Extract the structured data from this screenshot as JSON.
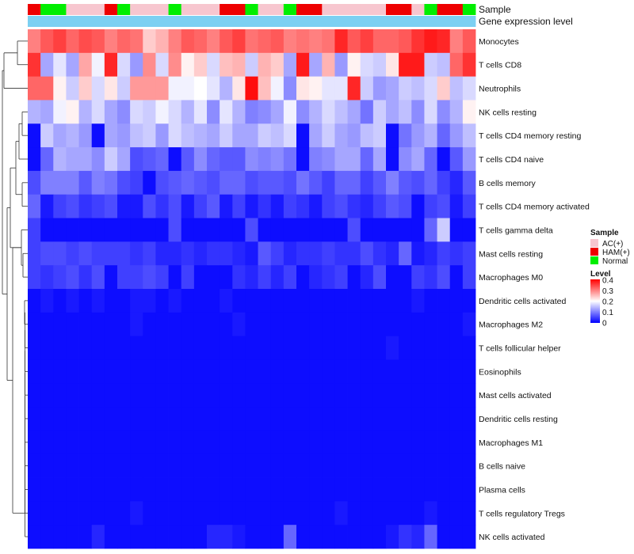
{
  "chart_data": {
    "type": "heatmap",
    "annotation_labels": {
      "sample": "Sample",
      "gene_expression": "Gene expression level"
    },
    "rows": [
      "Monocytes",
      "T cells CD8",
      "Neutrophils",
      "NK cells resting",
      "T cells CD4 memory resting",
      "T cells CD4 naive",
      "B cells memory",
      "T cells CD4 memory activated",
      "T cells gamma delta",
      "Mast cells resting",
      "Macrophages M0",
      "Dendritic cells activated",
      "Macrophages M2",
      "T cells follicular helper",
      "Eosinophils",
      "Mast cells activated",
      "Dendritic cells resting",
      "Macrophages M1",
      "B cells naive",
      "Plasma cells",
      "T cells regulatory  Tregs",
      "NK cells activated"
    ],
    "samples": [
      "HAM(+)",
      "Normal",
      "Normal",
      "AC(+)",
      "AC(+)",
      "AC(+)",
      "HAM(+)",
      "Normal",
      "AC(+)",
      "AC(+)",
      "AC(+)",
      "Normal",
      "AC(+)",
      "AC(+)",
      "AC(+)",
      "HAM(+)",
      "HAM(+)",
      "Normal",
      "AC(+)",
      "AC(+)",
      "Normal",
      "HAM(+)",
      "HAM(+)",
      "AC(+)",
      "AC(+)",
      "AC(+)",
      "AC(+)",
      "AC(+)",
      "HAM(+)",
      "HAM(+)",
      "AC(+)",
      "Normal",
      "HAM(+)",
      "HAM(+)",
      "Normal"
    ],
    "gene_expression_level": [
      0.1,
      0.1,
      0.1,
      0.1,
      0.1,
      0.1,
      0.1,
      0.1,
      0.1,
      0.1,
      0.1,
      0.1,
      0.1,
      0.1,
      0.1,
      0.1,
      0.1,
      0.1,
      0.1,
      0.1,
      0.1,
      0.1,
      0.1,
      0.1,
      0.1,
      0.1,
      0.1,
      0.1,
      0.1,
      0.1,
      0.1,
      0.1,
      0.1,
      0.1,
      0.1
    ],
    "values": [
      [
        0.3,
        0.33,
        0.35,
        0.32,
        0.34,
        0.33,
        0.3,
        0.32,
        0.31,
        0.24,
        0.26,
        0.3,
        0.33,
        0.32,
        0.3,
        0.33,
        0.35,
        0.31,
        0.32,
        0.33,
        0.3,
        0.31,
        0.3,
        0.31,
        0.37,
        0.33,
        0.35,
        0.32,
        0.32,
        0.33,
        0.36,
        0.38,
        0.37,
        0.3,
        0.33
      ],
      [
        0.36,
        0.13,
        0.18,
        0.13,
        0.27,
        0.19,
        0.37,
        0.17,
        0.12,
        0.29,
        0.17,
        0.29,
        0.21,
        0.24,
        0.17,
        0.25,
        0.26,
        0.16,
        0.26,
        0.24,
        0.13,
        0.38,
        0.13,
        0.26,
        0.12,
        0.21,
        0.17,
        0.16,
        0.22,
        0.38,
        0.38,
        0.16,
        0.15,
        0.32,
        0.36
      ],
      [
        0.32,
        0.32,
        0.21,
        0.16,
        0.24,
        0.17,
        0.22,
        0.16,
        0.28,
        0.28,
        0.28,
        0.19,
        0.19,
        0.2,
        0.18,
        0.14,
        0.22,
        0.39,
        0.25,
        0.19,
        0.11,
        0.22,
        0.21,
        0.18,
        0.18,
        0.37,
        0.16,
        0.12,
        0.13,
        0.16,
        0.15,
        0.17,
        0.24,
        0.15,
        0.17
      ],
      [
        0.14,
        0.13,
        0.19,
        0.21,
        0.14,
        0.17,
        0.13,
        0.11,
        0.17,
        0.16,
        0.19,
        0.17,
        0.14,
        0.18,
        0.11,
        0.18,
        0.14,
        0.1,
        0.11,
        0.13,
        0.19,
        0.11,
        0.14,
        0.17,
        0.15,
        0.13,
        0.09,
        0.16,
        0.13,
        0.15,
        0.11,
        0.17,
        0.11,
        0.14,
        0.21
      ],
      [
        0.01,
        0.16,
        0.13,
        0.14,
        0.12,
        0.01,
        0.13,
        0.12,
        0.15,
        0.16,
        0.12,
        0.17,
        0.15,
        0.14,
        0.13,
        0.16,
        0.13,
        0.13,
        0.16,
        0.15,
        0.17,
        0.01,
        0.13,
        0.16,
        0.13,
        0.12,
        0.15,
        0.16,
        0.01,
        0.09,
        0.12,
        0.14,
        0.08,
        0.12,
        0.15
      ],
      [
        0.01,
        0.08,
        0.14,
        0.13,
        0.13,
        0.11,
        0.16,
        0.13,
        0.06,
        0.07,
        0.08,
        0.01,
        0.07,
        0.11,
        0.08,
        0.07,
        0.07,
        0.11,
        0.1,
        0.11,
        0.09,
        0.01,
        0.1,
        0.11,
        0.13,
        0.13,
        0.08,
        0.13,
        0.01,
        0.11,
        0.13,
        0.08,
        0.01,
        0.07,
        0.12
      ],
      [
        0.06,
        0.1,
        0.1,
        0.1,
        0.07,
        0.1,
        0.09,
        0.06,
        0.05,
        0.01,
        0.06,
        0.07,
        0.08,
        0.07,
        0.06,
        0.08,
        0.08,
        0.06,
        0.07,
        0.07,
        0.06,
        0.09,
        0.07,
        0.05,
        0.08,
        0.08,
        0.05,
        0.07,
        0.1,
        0.07,
        0.06,
        0.08,
        0.05,
        0.03,
        0.07
      ],
      [
        0.08,
        0.02,
        0.05,
        0.06,
        0.04,
        0.05,
        0.06,
        0.02,
        0.02,
        0.06,
        0.04,
        0.06,
        0.02,
        0.05,
        0.07,
        0.02,
        0.05,
        0.02,
        0.04,
        0.02,
        0.05,
        0.04,
        0.02,
        0.05,
        0.06,
        0.04,
        0.03,
        0.05,
        0.07,
        0.06,
        0.01,
        0.05,
        0.06,
        0.02,
        0.05
      ],
      [
        0.05,
        0.01,
        0.01,
        0.01,
        0.01,
        0.01,
        0.01,
        0.01,
        0.01,
        0.01,
        0.01,
        0.06,
        0.01,
        0.01,
        0.01,
        0.01,
        0.01,
        0.06,
        0.01,
        0.01,
        0.01,
        0.01,
        0.01,
        0.01,
        0.01,
        0.06,
        0.01,
        0.01,
        0.01,
        0.01,
        0.01,
        0.08,
        0.16,
        0.01,
        0.01
      ],
      [
        0.05,
        0.06,
        0.06,
        0.05,
        0.06,
        0.05,
        0.05,
        0.05,
        0.04,
        0.05,
        0.03,
        0.03,
        0.04,
        0.03,
        0.04,
        0.04,
        0.03,
        0.02,
        0.07,
        0.05,
        0.03,
        0.04,
        0.04,
        0.05,
        0.04,
        0.04,
        0.06,
        0.04,
        0.03,
        0.08,
        0.02,
        0.03,
        0.05,
        0.04,
        0.05
      ],
      [
        0.05,
        0.04,
        0.05,
        0.06,
        0.04,
        0.06,
        0.01,
        0.05,
        0.05,
        0.06,
        0.05,
        0.01,
        0.05,
        0.01,
        0.01,
        0.01,
        0.04,
        0.03,
        0.05,
        0.03,
        0.05,
        0.01,
        0.03,
        0.04,
        0.05,
        0.01,
        0.03,
        0.06,
        0.01,
        0.01,
        0.05,
        0.04,
        0.06,
        0.01,
        0.05
      ],
      [
        0.01,
        0.02,
        0.01,
        0.02,
        0.01,
        0.02,
        0.01,
        0.01,
        0.02,
        0.02,
        0.01,
        0.02,
        0.01,
        0.01,
        0.01,
        0.02,
        0.01,
        0.01,
        0.01,
        0.01,
        0.01,
        0.01,
        0.01,
        0.01,
        0.01,
        0.01,
        0.01,
        0.01,
        0.01,
        0.01,
        0.02,
        0.01,
        0.01,
        0.01,
        0.01
      ],
      [
        0.01,
        0.01,
        0.01,
        0.01,
        0.01,
        0.01,
        0.01,
        0.01,
        0.02,
        0.01,
        0.01,
        0.01,
        0.01,
        0.01,
        0.01,
        0.01,
        0.02,
        0.01,
        0.01,
        0.01,
        0.01,
        0.01,
        0.01,
        0.01,
        0.01,
        0.01,
        0.01,
        0.01,
        0.01,
        0.01,
        0.01,
        0.01,
        0.01,
        0.01,
        0.02
      ],
      [
        0.01,
        0.01,
        0.01,
        0.01,
        0.01,
        0.01,
        0.01,
        0.01,
        0.01,
        0.01,
        0.01,
        0.01,
        0.01,
        0.01,
        0.01,
        0.01,
        0.01,
        0.01,
        0.01,
        0.01,
        0.01,
        0.01,
        0.01,
        0.01,
        0.01,
        0.01,
        0.01,
        0.01,
        0.02,
        0.01,
        0.01,
        0.01,
        0.01,
        0.01,
        0.01
      ],
      [
        0.01,
        0.01,
        0.01,
        0.01,
        0.01,
        0.01,
        0.01,
        0.01,
        0.01,
        0.01,
        0.01,
        0.01,
        0.01,
        0.01,
        0.01,
        0.01,
        0.01,
        0.01,
        0.01,
        0.01,
        0.01,
        0.01,
        0.01,
        0.01,
        0.01,
        0.01,
        0.01,
        0.01,
        0.01,
        0.01,
        0.01,
        0.01,
        0.01,
        0.01,
        0.01
      ],
      [
        0.01,
        0.01,
        0.01,
        0.01,
        0.01,
        0.01,
        0.01,
        0.01,
        0.01,
        0.01,
        0.01,
        0.01,
        0.01,
        0.01,
        0.01,
        0.01,
        0.01,
        0.01,
        0.01,
        0.01,
        0.01,
        0.01,
        0.01,
        0.01,
        0.01,
        0.01,
        0.01,
        0.01,
        0.01,
        0.01,
        0.01,
        0.01,
        0.01,
        0.01,
        0.01
      ],
      [
        0.01,
        0.01,
        0.01,
        0.01,
        0.01,
        0.01,
        0.01,
        0.01,
        0.01,
        0.01,
        0.01,
        0.01,
        0.01,
        0.01,
        0.01,
        0.01,
        0.01,
        0.01,
        0.01,
        0.01,
        0.01,
        0.01,
        0.01,
        0.01,
        0.01,
        0.01,
        0.01,
        0.01,
        0.01,
        0.01,
        0.01,
        0.01,
        0.01,
        0.01,
        0.01
      ],
      [
        0.01,
        0.01,
        0.01,
        0.01,
        0.01,
        0.01,
        0.01,
        0.01,
        0.01,
        0.01,
        0.01,
        0.01,
        0.01,
        0.01,
        0.01,
        0.01,
        0.01,
        0.01,
        0.01,
        0.01,
        0.01,
        0.01,
        0.01,
        0.01,
        0.01,
        0.01,
        0.01,
        0.01,
        0.01,
        0.01,
        0.01,
        0.01,
        0.01,
        0.01,
        0.01
      ],
      [
        0.01,
        0.01,
        0.01,
        0.01,
        0.01,
        0.01,
        0.01,
        0.01,
        0.01,
        0.01,
        0.01,
        0.01,
        0.01,
        0.01,
        0.01,
        0.01,
        0.01,
        0.01,
        0.01,
        0.01,
        0.01,
        0.01,
        0.01,
        0.01,
        0.01,
        0.01,
        0.01,
        0.01,
        0.01,
        0.01,
        0.01,
        0.01,
        0.01,
        0.01,
        0.01
      ],
      [
        0.01,
        0.01,
        0.01,
        0.01,
        0.01,
        0.01,
        0.01,
        0.01,
        0.01,
        0.01,
        0.01,
        0.01,
        0.01,
        0.01,
        0.01,
        0.01,
        0.01,
        0.01,
        0.01,
        0.01,
        0.01,
        0.01,
        0.01,
        0.01,
        0.01,
        0.01,
        0.01,
        0.01,
        0.01,
        0.01,
        0.01,
        0.01,
        0.01,
        0.01,
        0.01
      ],
      [
        0.01,
        0.01,
        0.01,
        0.01,
        0.01,
        0.01,
        0.01,
        0.01,
        0.02,
        0.01,
        0.01,
        0.01,
        0.01,
        0.01,
        0.01,
        0.01,
        0.01,
        0.01,
        0.01,
        0.01,
        0.01,
        0.01,
        0.01,
        0.01,
        0.02,
        0.01,
        0.01,
        0.01,
        0.01,
        0.01,
        0.01,
        0.02,
        0.01,
        0.01,
        0.01
      ],
      [
        0.01,
        0.01,
        0.01,
        0.01,
        0.01,
        0.03,
        0.01,
        0.01,
        0.01,
        0.01,
        0.01,
        0.01,
        0.01,
        0.01,
        0.03,
        0.03,
        0.02,
        0.01,
        0.01,
        0.01,
        0.08,
        0.01,
        0.01,
        0.01,
        0.01,
        0.01,
        0.01,
        0.01,
        0.02,
        0.04,
        0.03,
        0.08,
        0.01,
        0.01,
        0.01
      ]
    ],
    "sample_legend": {
      "title": "Sample",
      "entries": [
        {
          "label": "AC(+)",
          "color": "#f7c6cf"
        },
        {
          "label": "HAM(+)",
          "color": "#ee0000"
        },
        {
          "label": "Normal",
          "color": "#00ee00"
        }
      ]
    },
    "level_legend": {
      "title": "Level",
      "ticks": [
        "0.4",
        "0.3",
        "0.2",
        "0.1",
        "0"
      ],
      "range": [
        0,
        0.4
      ]
    },
    "colors": {
      "low": "#0000ff",
      "mid": "#ffffff",
      "high": "#ff0000",
      "gene_expression": "#7cd0f2"
    },
    "color_midpoint": 0.2
  }
}
